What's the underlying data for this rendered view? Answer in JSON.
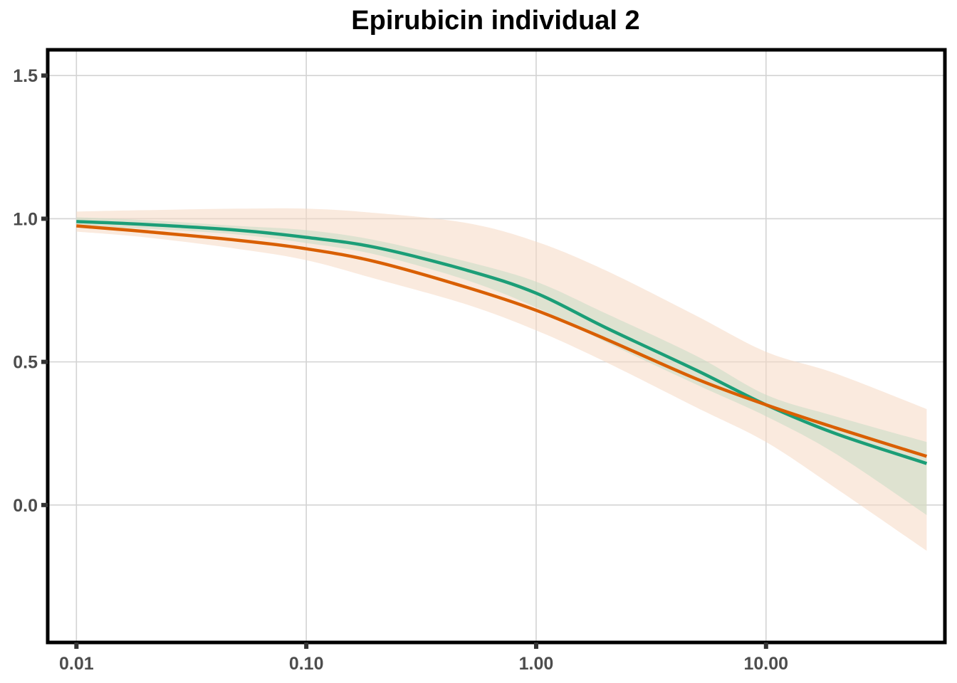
{
  "chart_data": {
    "type": "line",
    "title": "Epirubicin individual 2",
    "xlabel": "",
    "ylabel": "",
    "x_scale": "log10",
    "xlim": [
      0.0075,
      60
    ],
    "ylim": [
      -0.48,
      1.59
    ],
    "x_ticks": [
      0.01,
      0.1,
      1,
      10
    ],
    "x_tick_labels": [
      "0.01",
      "0.10",
      "1.00",
      "10.00"
    ],
    "y_ticks": [
      0.0,
      0.5,
      1.0,
      1.5
    ],
    "y_tick_labels": [
      "0.0",
      "0.5",
      "1.0",
      "1.5"
    ],
    "grid": true,
    "legend": "none",
    "series": [
      {
        "color": "#1b9e77",
        "band_color": "#c7dac5",
        "x": [
          0.01,
          0.02,
          0.05,
          0.1,
          0.2,
          0.5,
          1,
          2,
          5,
          10,
          20,
          50
        ],
        "y": [
          0.99,
          0.98,
          0.96,
          0.935,
          0.9,
          0.82,
          0.74,
          0.62,
          0.47,
          0.35,
          0.25,
          0.145
        ],
        "lower": [
          0.97,
          0.965,
          0.945,
          0.915,
          0.875,
          0.785,
          0.69,
          0.57,
          0.42,
          0.31,
          0.18,
          -0.035
        ],
        "upper": [
          1.005,
          0.995,
          0.975,
          0.96,
          0.925,
          0.85,
          0.78,
          0.67,
          0.52,
          0.385,
          0.31,
          0.22
        ]
      },
      {
        "color": "#d95f02",
        "band_color": "#f6d8c3",
        "x": [
          0.01,
          0.02,
          0.05,
          0.1,
          0.2,
          0.5,
          1,
          2,
          5,
          10,
          20,
          50
        ],
        "y": [
          0.975,
          0.955,
          0.925,
          0.895,
          0.85,
          0.76,
          0.68,
          0.58,
          0.44,
          0.35,
          0.27,
          0.17
        ],
        "lower": [
          0.955,
          0.935,
          0.895,
          0.855,
          0.79,
          0.7,
          0.61,
          0.5,
          0.34,
          0.22,
          0.06,
          -0.16
        ],
        "upper": [
          1.025,
          1.03,
          1.035,
          1.035,
          1.02,
          0.985,
          0.92,
          0.82,
          0.66,
          0.535,
          0.46,
          0.335
        ]
      }
    ]
  }
}
